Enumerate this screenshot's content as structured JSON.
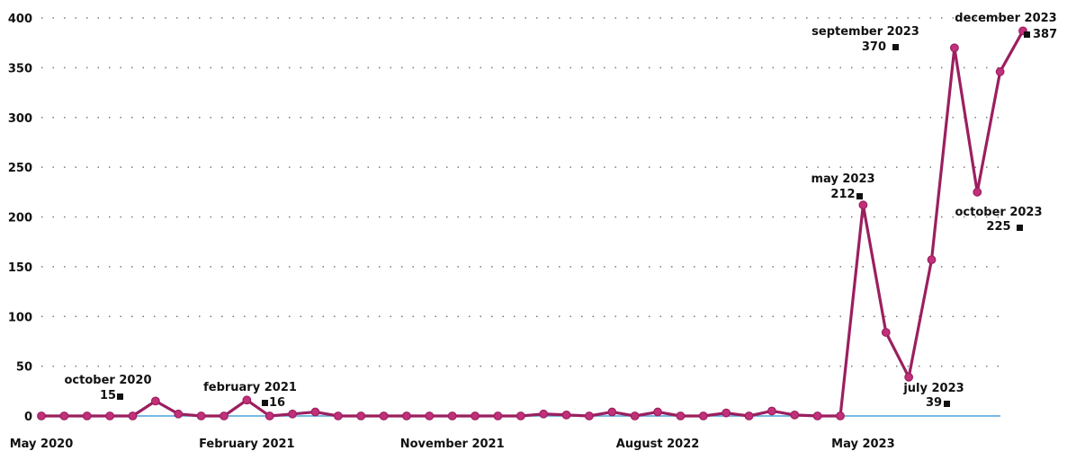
{
  "chart_data": {
    "type": "line",
    "title": "",
    "xlabel": "",
    "ylabel": "",
    "ylim": [
      0,
      400
    ],
    "y_ticks": [
      0,
      50,
      100,
      150,
      200,
      250,
      300,
      350,
      400
    ],
    "grid": "dotted horizontal",
    "x_tick_labels": [
      {
        "index": 0,
        "label": "May 2020"
      },
      {
        "index": 9,
        "label": "February 2021"
      },
      {
        "index": 18,
        "label": "November 2021"
      },
      {
        "index": 27,
        "label": "August 2022"
      },
      {
        "index": 36,
        "label": "May 2023"
      }
    ],
    "series": [
      {
        "color": "#9b1f5f",
        "x": [
          "2020-05",
          "2020-06",
          "2020-07",
          "2020-08",
          "2020-09",
          "2020-10",
          "2020-11",
          "2020-12",
          "2021-01",
          "2021-02",
          "2021-03",
          "2021-04",
          "2021-05",
          "2021-06",
          "2021-07",
          "2021-08",
          "2021-09",
          "2021-10",
          "2021-11",
          "2021-12",
          "2022-01",
          "2022-02",
          "2022-03",
          "2022-04",
          "2022-05",
          "2022-06",
          "2022-07",
          "2022-08",
          "2022-09",
          "2022-10",
          "2022-11",
          "2022-12",
          "2023-01",
          "2023-02",
          "2023-03",
          "2023-04",
          "2023-05",
          "2023-06",
          "2023-07",
          "2023-08",
          "2023-09",
          "2023-10",
          "2023-11",
          "2023-12"
        ],
        "values": [
          0,
          0,
          0,
          0,
          0,
          15,
          2,
          0,
          0,
          16,
          0,
          2,
          4,
          0,
          0,
          0,
          0,
          0,
          0,
          0,
          0,
          0,
          2,
          1,
          0,
          4,
          0,
          4,
          0,
          0,
          3,
          0,
          5,
          1,
          0,
          0,
          212,
          84,
          39,
          157,
          370,
          225,
          346,
          387
        ]
      }
    ],
    "annotations": [
      {
        "index": 5,
        "name": "october 2020",
        "value": "15"
      },
      {
        "index": 9,
        "name": "february 2021",
        "value": "16"
      },
      {
        "index": 36,
        "name": "may 2023",
        "value": "212"
      },
      {
        "index": 38,
        "name": "july 2023",
        "value": "39"
      },
      {
        "index": 40,
        "name": "september 2023",
        "value": "370"
      },
      {
        "index": 41,
        "name": "october 2023",
        "value": "225"
      },
      {
        "index": 43,
        "name": "december 2023",
        "value": "387"
      }
    ],
    "baseline_color": "#4aa3d8"
  }
}
